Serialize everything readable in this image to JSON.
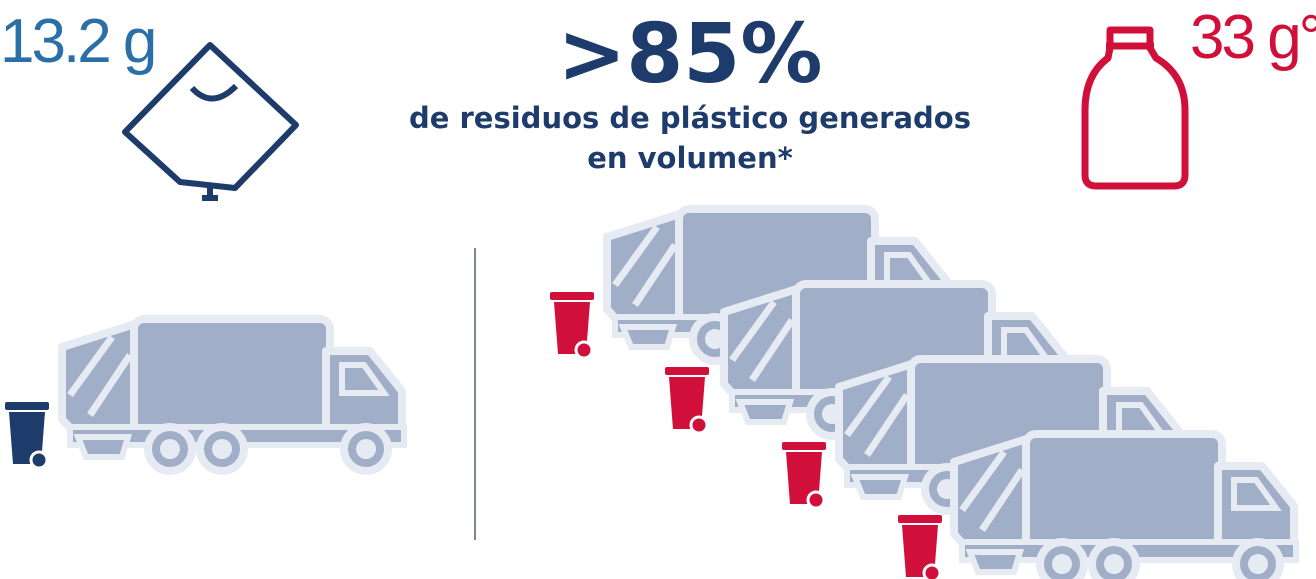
{
  "left_weight": "13.2 g",
  "headline": ">85%",
  "subtitle_lines": [
    "de residuos de plástico generados",
    "en volumen*"
  ],
  "right_weight": "33 g°"
}
